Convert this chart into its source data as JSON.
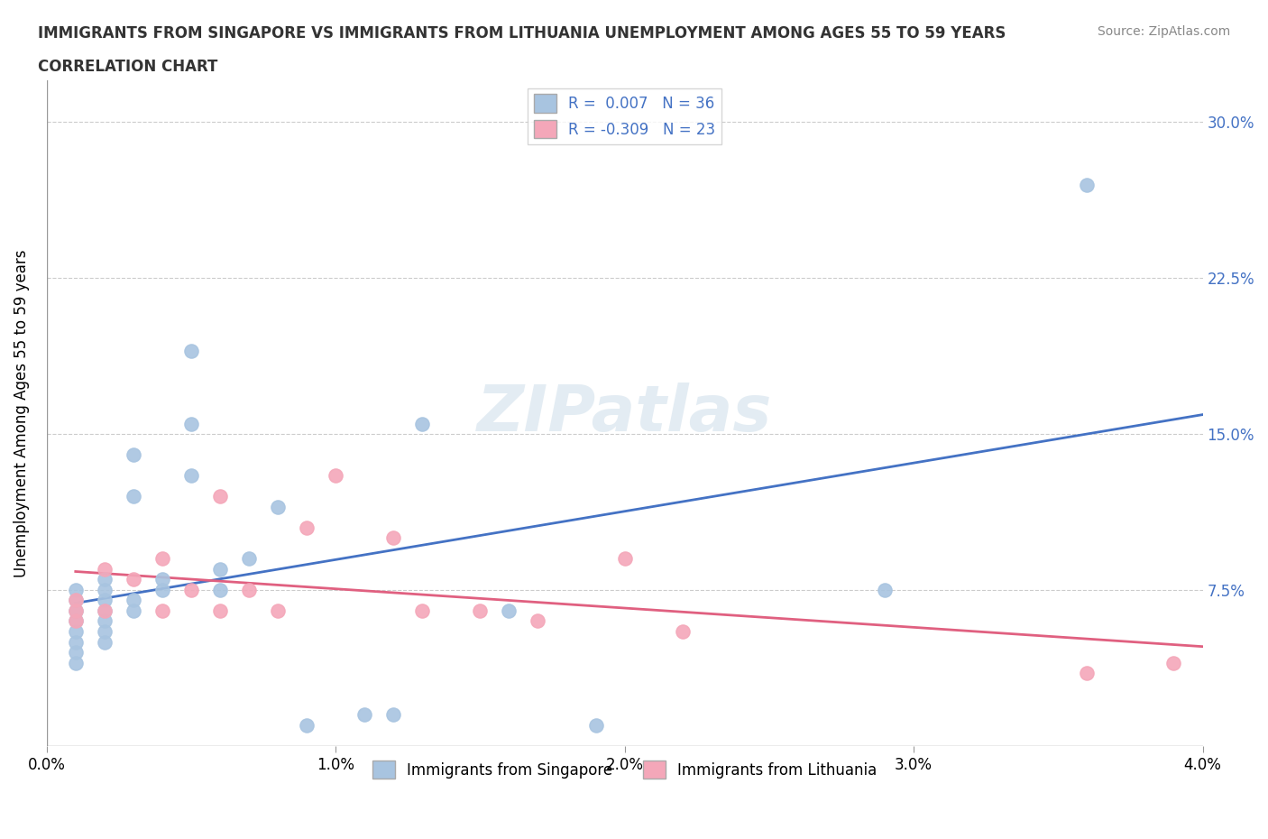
{
  "title_line1": "IMMIGRANTS FROM SINGAPORE VS IMMIGRANTS FROM LITHUANIA UNEMPLOYMENT AMONG AGES 55 TO 59 YEARS",
  "title_line2": "CORRELATION CHART",
  "source_text": "Source: ZipAtlas.com",
  "ylabel": "Unemployment Among Ages 55 to 59 years",
  "xlim": [
    0.0,
    0.04
  ],
  "ylim": [
    0.0,
    0.32
  ],
  "yticks": [
    0.0,
    0.075,
    0.15,
    0.225,
    0.3
  ],
  "ytick_labels": [
    "",
    "7.5%",
    "15.0%",
    "22.5%",
    "30.0%"
  ],
  "xticks": [
    0.0,
    0.01,
    0.02,
    0.03,
    0.04
  ],
  "xtick_labels": [
    "0.0%",
    "1.0%",
    "2.0%",
    "3.0%",
    "4.0%"
  ],
  "singapore_color": "#a8c4e0",
  "singapore_line_color": "#4472c4",
  "lithuania_color": "#f4a7b9",
  "lithuania_line_color": "#e06080",
  "singapore_R": 0.007,
  "singapore_N": 36,
  "lithuania_R": -0.309,
  "lithuania_N": 23,
  "singapore_x": [
    0.001,
    0.001,
    0.001,
    0.001,
    0.001,
    0.001,
    0.001,
    0.001,
    0.002,
    0.002,
    0.002,
    0.002,
    0.002,
    0.002,
    0.002,
    0.003,
    0.003,
    0.003,
    0.003,
    0.004,
    0.004,
    0.005,
    0.005,
    0.005,
    0.006,
    0.006,
    0.007,
    0.008,
    0.009,
    0.011,
    0.012,
    0.013,
    0.016,
    0.019,
    0.029,
    0.036
  ],
  "singapore_y": [
    0.04,
    0.045,
    0.05,
    0.055,
    0.06,
    0.065,
    0.07,
    0.075,
    0.05,
    0.055,
    0.06,
    0.065,
    0.07,
    0.075,
    0.08,
    0.065,
    0.07,
    0.12,
    0.14,
    0.075,
    0.08,
    0.13,
    0.155,
    0.19,
    0.075,
    0.085,
    0.09,
    0.115,
    0.01,
    0.015,
    0.015,
    0.155,
    0.065,
    0.01,
    0.075,
    0.27
  ],
  "lithuania_x": [
    0.001,
    0.001,
    0.001,
    0.002,
    0.002,
    0.003,
    0.004,
    0.004,
    0.005,
    0.006,
    0.006,
    0.007,
    0.008,
    0.009,
    0.01,
    0.012,
    0.013,
    0.015,
    0.017,
    0.02,
    0.022,
    0.036,
    0.039
  ],
  "lithuania_y": [
    0.06,
    0.065,
    0.07,
    0.065,
    0.085,
    0.08,
    0.065,
    0.09,
    0.075,
    0.065,
    0.12,
    0.075,
    0.065,
    0.105,
    0.13,
    0.1,
    0.065,
    0.065,
    0.06,
    0.09,
    0.055,
    0.035,
    0.04
  ]
}
